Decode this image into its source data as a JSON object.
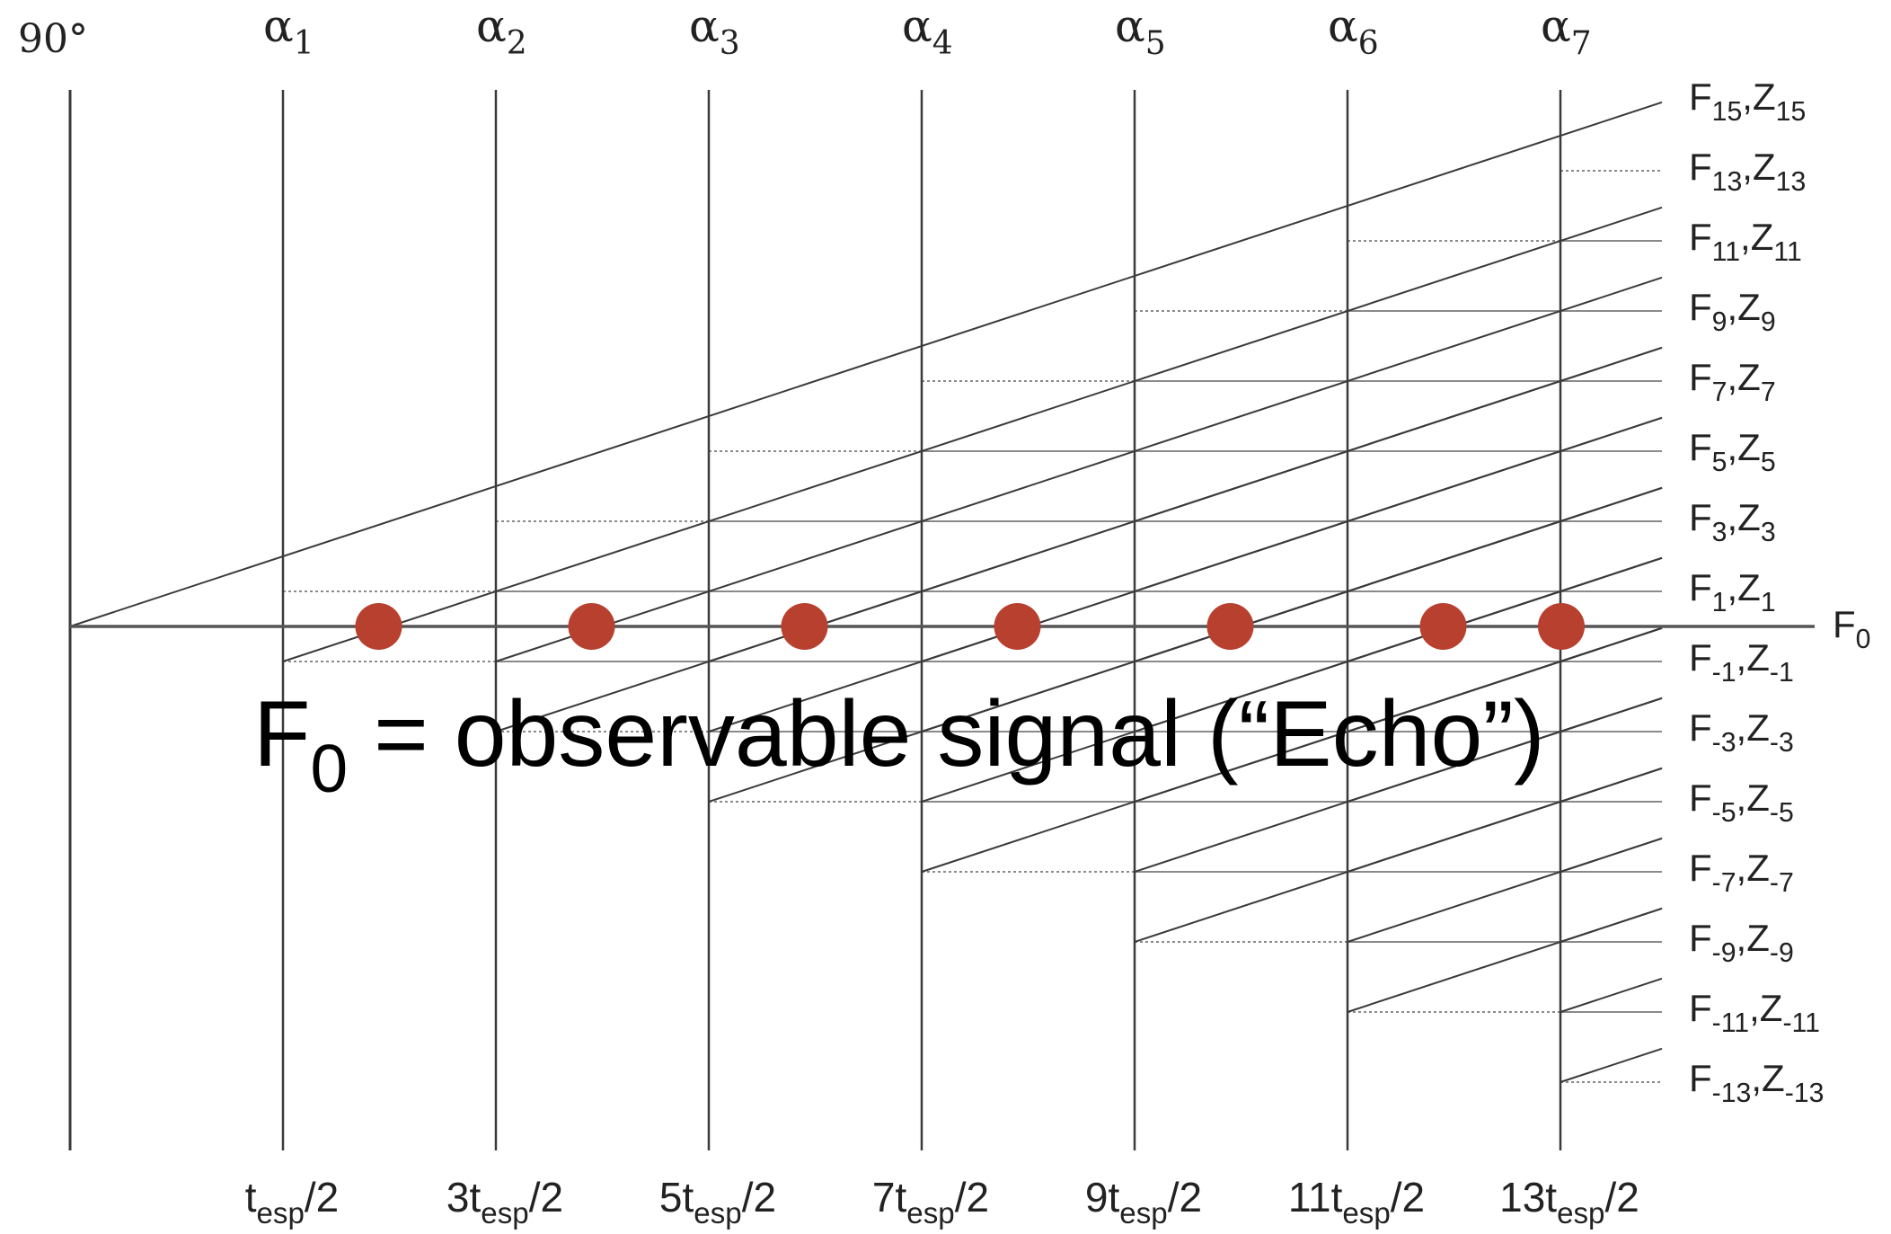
{
  "diagram": {
    "top_left_label": "90°",
    "pulses": [
      {
        "greek": "α",
        "sub": "1"
      },
      {
        "greek": "α",
        "sub": "2"
      },
      {
        "greek": "α",
        "sub": "3"
      },
      {
        "greek": "α",
        "sub": "4"
      },
      {
        "greek": "α",
        "sub": "5"
      },
      {
        "greek": "α",
        "sub": "6"
      },
      {
        "greek": "α",
        "sub": "7"
      }
    ],
    "time_labels": [
      {
        "pre": "t",
        "sub": "esp",
        "post": "/2"
      },
      {
        "pre": "3t",
        "sub": "esp",
        "post": "/2"
      },
      {
        "pre": "5t",
        "sub": "esp",
        "post": "/2"
      },
      {
        "pre": "7t",
        "sub": "esp",
        "post": "/2"
      },
      {
        "pre": "9t",
        "sub": "esp",
        "post": "/2"
      },
      {
        "pre": "11t",
        "sub": "esp",
        "post": "/2"
      },
      {
        "pre": "13t",
        "sub": "esp",
        "post": "/2"
      }
    ],
    "state_labels": [
      {
        "n": "15"
      },
      {
        "n": "13"
      },
      {
        "n": "11"
      },
      {
        "n": "9"
      },
      {
        "n": "7"
      },
      {
        "n": "5"
      },
      {
        "n": "3"
      },
      {
        "n": "1"
      },
      {
        "n": "-1"
      },
      {
        "n": "-3"
      },
      {
        "n": "-5"
      },
      {
        "n": "-7"
      },
      {
        "n": "-9"
      },
      {
        "n": "-11"
      },
      {
        "n": "-13"
      }
    ],
    "f0_axis_label": {
      "main": "F",
      "sub": "0"
    },
    "echo_label": {
      "main": "F",
      "sub": "0",
      "rest": " = observable signal (“Echo”)"
    },
    "colors": {
      "line": "#3a3a3a",
      "dotted": "#8a8a8a",
      "echo_dot": "#b8402f",
      "text": "#222222"
    }
  }
}
